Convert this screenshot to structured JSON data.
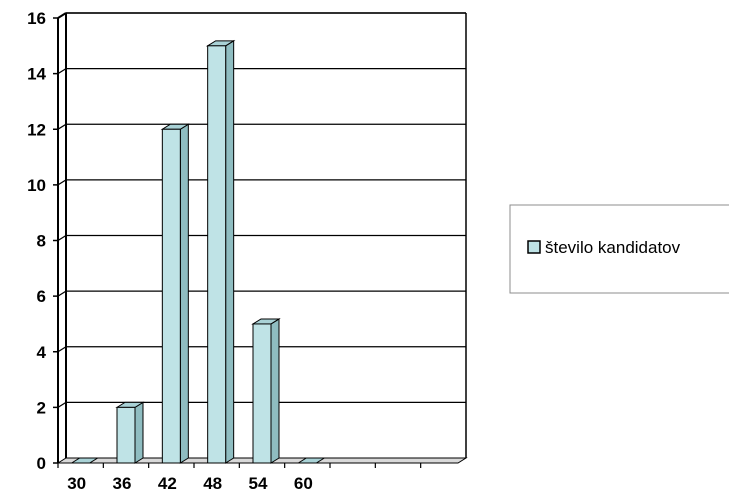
{
  "chart_data": {
    "type": "bar",
    "categories": [
      "30",
      "36",
      "42",
      "48",
      "54",
      "60",
      "",
      "",
      ""
    ],
    "series": [
      {
        "name": "število kandidatov",
        "values": [
          0,
          2,
          12,
          15,
          5,
          0,
          null,
          null,
          null
        ]
      }
    ],
    "ylim": [
      0,
      16
    ],
    "yticks": [
      0,
      2,
      4,
      6,
      8,
      10,
      12,
      14,
      16
    ],
    "grid": true,
    "legend": "right",
    "colors": {
      "bar": "#bfe3e6",
      "bar_side": "#8fbdc1",
      "bar_top": "#a9d2d6",
      "outline": "#000000"
    }
  }
}
